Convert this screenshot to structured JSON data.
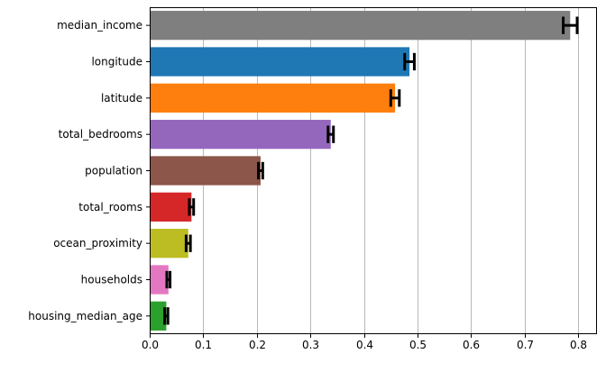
{
  "chart_data": {
    "type": "bar",
    "orientation": "horizontal",
    "title": "",
    "xlabel": "",
    "ylabel": "",
    "xlim": [
      0,
      0.835
    ],
    "xticks": [
      0.0,
      0.1,
      0.2,
      0.3,
      0.4,
      0.5,
      0.6,
      0.7,
      0.8
    ],
    "xtick_labels": [
      "0.0",
      "0.1",
      "0.2",
      "0.3",
      "0.4",
      "0.5",
      "0.6",
      "0.7",
      "0.8"
    ],
    "grid": "vertical",
    "categories": [
      "median_income",
      "longitude",
      "latitude",
      "total_bedrooms",
      "population",
      "total_rooms",
      "ocean_proximity",
      "households",
      "housing_median_age"
    ],
    "values": [
      0.785,
      0.485,
      0.458,
      0.338,
      0.207,
      0.078,
      0.072,
      0.035,
      0.031
    ],
    "errors": [
      0.013,
      0.009,
      0.008,
      0.005,
      0.004,
      0.004,
      0.004,
      0.003,
      0.003
    ],
    "colors": [
      "#7f7f7f",
      "#1f77b4",
      "#ff7f0e",
      "#9467bd",
      "#8c564b",
      "#d62728",
      "#bcbd22",
      "#e377c2",
      "#2ca02c"
    ]
  }
}
